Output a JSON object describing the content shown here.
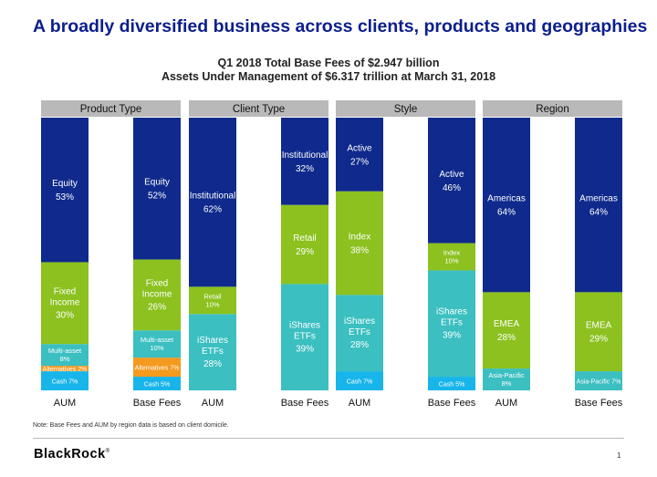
{
  "page": {
    "title": "A broadly diversified business across clients, products and geographies",
    "subtitle_line1": "Q1 2018 Total Base Fees of $2.947 billion",
    "subtitle_line2": "Assets Under Management of $6.317 trillion at March 31, 2018",
    "note": "Note: Base Fees and AUM by region data is based on client domicile.",
    "logo": "BlackRock",
    "logo_mark": "®",
    "page_number": "1"
  },
  "colors": {
    "navy": "#0f2a8c",
    "green": "#8cc11f",
    "teal": "#3bbfc1",
    "cyan": "#17b5ea",
    "orange": "#f39a1f",
    "header_gray": "#b9b9b9"
  },
  "chart_data": {
    "type": "bar",
    "stacked": true,
    "percent_scale": [
      0,
      100
    ],
    "panels": [
      {
        "header": "Product Type",
        "bars": [
          {
            "label": "AUM",
            "segments": [
              {
                "name": "Cash",
                "value": 7,
                "text": "7%",
                "color": "cyan"
              },
              {
                "name": "Alternatives",
                "value": 2,
                "text": "2%",
                "color": "orange"
              },
              {
                "name": "Multi-asset",
                "value": 8,
                "text": "8%",
                "color": "teal"
              },
              {
                "name": "Fixed Income",
                "value": 30,
                "text": "30%",
                "color": "green"
              },
              {
                "name": "Equity",
                "value": 53,
                "text": "53%",
                "color": "navy"
              }
            ]
          },
          {
            "label": "Base Fees",
            "segments": [
              {
                "name": "Cash",
                "value": 5,
                "text": "5%",
                "color": "cyan"
              },
              {
                "name": "Alternatives",
                "value": 7,
                "text": "7%",
                "color": "orange"
              },
              {
                "name": "Multi-asset",
                "value": 10,
                "text": "10%",
                "color": "teal"
              },
              {
                "name": "Fixed Income",
                "value": 26,
                "text": "26%",
                "color": "green"
              },
              {
                "name": "Equity",
                "value": 52,
                "text": "52%",
                "color": "navy"
              }
            ]
          }
        ]
      },
      {
        "header": "Client Type",
        "bars": [
          {
            "label": "AUM",
            "segments": [
              {
                "name": "iShares ETFs",
                "value": 28,
                "text": "28%",
                "color": "teal"
              },
              {
                "name": "Retail",
                "value": 10,
                "text": "10%",
                "color": "green"
              },
              {
                "name": "Institutional",
                "value": 62,
                "text": "62%",
                "color": "navy"
              }
            ]
          },
          {
            "label": "Base Fees",
            "segments": [
              {
                "name": "iShares ETFs",
                "value": 39,
                "text": "39%",
                "color": "teal"
              },
              {
                "name": "Retail",
                "value": 29,
                "text": "29%",
                "color": "green"
              },
              {
                "name": "Institutional",
                "value": 32,
                "text": "32%",
                "color": "navy"
              }
            ]
          }
        ]
      },
      {
        "header": "Style",
        "bars": [
          {
            "label": "AUM",
            "segments": [
              {
                "name": "Cash",
                "value": 7,
                "text": "7%",
                "color": "cyan"
              },
              {
                "name": "iShares ETFs",
                "value": 28,
                "text": "28%",
                "color": "teal"
              },
              {
                "name": "Index",
                "value": 38,
                "text": "38%",
                "color": "green"
              },
              {
                "name": "Active",
                "value": 27,
                "text": "27%",
                "color": "navy"
              }
            ]
          },
          {
            "label": "Base Fees",
            "segments": [
              {
                "name": "Cash",
                "value": 5,
                "text": "5%",
                "color": "cyan"
              },
              {
                "name": "iShares ETFs",
                "value": 39,
                "text": "39%",
                "color": "teal"
              },
              {
                "name": "Index",
                "value": 10,
                "text": "10%",
                "color": "green"
              },
              {
                "name": "Active",
                "value": 46,
                "text": "46%",
                "color": "navy"
              }
            ]
          }
        ]
      },
      {
        "header": "Region",
        "bars": [
          {
            "label": "AUM",
            "segments": [
              {
                "name": "Asia-Pacific",
                "value": 8,
                "text": "8%",
                "color": "teal"
              },
              {
                "name": "EMEA",
                "value": 28,
                "text": "28%",
                "color": "green"
              },
              {
                "name": "Americas",
                "value": 64,
                "text": "64%",
                "color": "navy"
              }
            ]
          },
          {
            "label": "Base Fees",
            "segments": [
              {
                "name": "Asia-Pacific",
                "value": 7,
                "text": "7%",
                "color": "teal"
              },
              {
                "name": "EMEA",
                "value": 29,
                "text": "29%",
                "color": "green"
              },
              {
                "name": "Americas",
                "value": 64,
                "text": "64%",
                "color": "navy"
              }
            ]
          }
        ]
      }
    ]
  }
}
